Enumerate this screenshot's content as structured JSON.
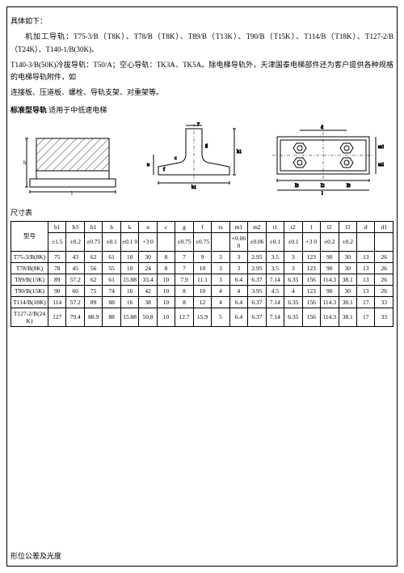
{
  "intro": {
    "line1": "具体如下：",
    "line2": "机加工导轨：T75-3/B（T8K）、T78/B（T8K）、T89/B（T13K）、T90/B（T15K）、T114/B（T18K）、T127-2/B（T24K）、T140-1/B(30K)、",
    "line3": "T140-3/B(50K)冷拔导轨：T50/A；空心导轨：TK3A、TK5A。除电梯导轨外，天津国泰电梯部件还为客户提供各种规格的电梯导轨附件，如",
    "line4": "连接板、压道板、螺栓、导轨支架、对重架等。"
  },
  "section": {
    "bold": "标准型导轨",
    "rest": " 适用于中低速电梯"
  },
  "table": {
    "title": "尺寸表",
    "model_label": "型号",
    "headers": [
      "b1",
      "b3",
      "h1",
      "h",
      "k",
      "n",
      "c",
      "g",
      "f",
      "rs",
      "m1",
      "m2",
      "t1",
      "t2",
      "l",
      "l2",
      "l3",
      "d",
      "d1"
    ],
    "tolerances": [
      "±1.5",
      "±0.2",
      "±0.75",
      "±0.1",
      "±0.1 0",
      "+3 0",
      "",
      "±0.75",
      "±0.75",
      "",
      "+0.06 0",
      "±0.06",
      "±0.1",
      "±0.1",
      "+3 0",
      "±0.2",
      "±0.2",
      "",
      ""
    ],
    "rows": [
      {
        "model": "T75-3/B(8K)",
        "vals": [
          "75",
          "43",
          "62",
          "61",
          "10",
          "30",
          "8",
          "7",
          "9",
          "3",
          "3",
          "2.95",
          "3.5",
          "3",
          "123",
          "90",
          "30",
          "13",
          "26"
        ]
      },
      {
        "model": "T78/B(8K)",
        "vals": [
          "78",
          "45",
          "56",
          "55",
          "10",
          "24",
          "8",
          "7",
          "10",
          "3",
          "3",
          "2.95",
          "3.5",
          "3",
          "123",
          "90",
          "30",
          "13",
          "26"
        ]
      },
      {
        "model": "T89/B(13K)",
        "vals": [
          "89",
          "57.2",
          "62",
          "61",
          "15.88",
          "33.4",
          "10",
          "7.9",
          "11.1",
          "3",
          "6.4",
          "6.37",
          "7.14",
          "6.35",
          "156",
          "114.3",
          "38.1",
          "13",
          "26"
        ]
      },
      {
        "model": "T90/B(15K)",
        "vals": [
          "90",
          "60",
          "75",
          "74",
          "16",
          "42",
          "10",
          "8",
          "10",
          "4",
          "4",
          "3.95",
          "4.5",
          "4",
          "123",
          "90",
          "30",
          "13",
          "26"
        ]
      },
      {
        "model": "T114/B(18K)",
        "vals": [
          "114",
          "57.2",
          "89",
          "88",
          "16",
          "38",
          "10",
          "8",
          "12",
          "4",
          "6.4",
          "6.37",
          "7.14",
          "6.35",
          "156",
          "114.3",
          "38.1",
          "17",
          "33"
        ]
      },
      {
        "model": "T127-2/B(24K)",
        "vals": [
          "127",
          "79.4",
          "88.9",
          "88",
          "15.88",
          "50.8",
          "10",
          "12.7",
          "15.9",
          "5",
          "6.4",
          "6.37",
          "7.14",
          "6.35",
          "156",
          "114.3",
          "38.1",
          "17",
          "33"
        ]
      }
    ]
  },
  "footer": "形位公差及光度"
}
